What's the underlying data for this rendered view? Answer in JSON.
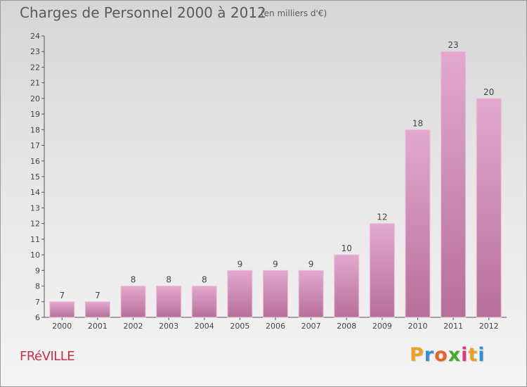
{
  "chart_data": {
    "type": "bar",
    "title": "Charges de Personnel 2000 à 2012",
    "subtitle": "(en milliers d'€)",
    "categories": [
      "2000",
      "2001",
      "2002",
      "2003",
      "2004",
      "2005",
      "2006",
      "2007",
      "2008",
      "2009",
      "2010",
      "2011",
      "2012"
    ],
    "values": [
      7,
      7,
      8,
      8,
      8,
      9,
      9,
      9,
      10,
      12,
      18,
      23,
      20
    ],
    "ylim": [
      6,
      24
    ],
    "yticks": [
      6,
      7,
      8,
      9,
      10,
      11,
      12,
      13,
      14,
      15,
      16,
      17,
      18,
      19,
      20,
      21,
      22,
      23,
      24
    ],
    "grid": false,
    "bar_color": "#d48fb9"
  },
  "place": "FRéVILLE",
  "logo": {
    "letters": [
      "P",
      "r",
      "o",
      "x",
      "i",
      "t",
      "i"
    ],
    "colors": [
      "#f0a020",
      "#2f8fd8",
      "#e8642a",
      "#46a82e",
      "#d83a8a",
      "#f0a020",
      "#2f8fd8"
    ]
  }
}
